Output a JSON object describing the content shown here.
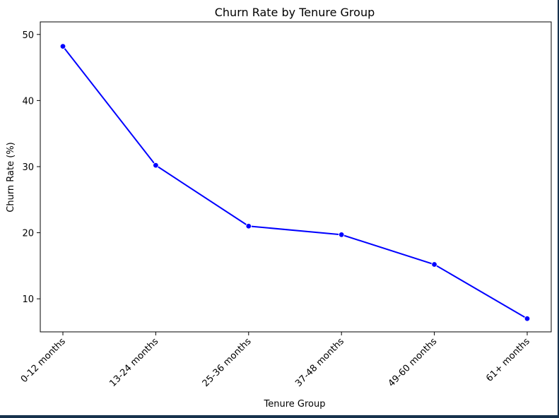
{
  "chart_data": {
    "type": "line",
    "title": "Churn Rate by Tenure Group",
    "xlabel": "Tenure Group",
    "ylabel": "Churn Rate (%)",
    "categories": [
      "0-12 months",
      "13-24 months",
      "25-36 months",
      "37-48 months",
      "49-60 months",
      "61+ months"
    ],
    "series": [
      {
        "values": [
          48.2,
          30.2,
          21.0,
          19.7,
          15.2,
          7.0
        ]
      }
    ],
    "yticks": [
      10,
      20,
      30,
      40,
      50
    ],
    "ylim": [
      5,
      51.9
    ],
    "grid": false,
    "marker": "circle",
    "colors": {
      "line": "#0000ff",
      "marker": "#0000ff",
      "axis": "#000000"
    }
  }
}
